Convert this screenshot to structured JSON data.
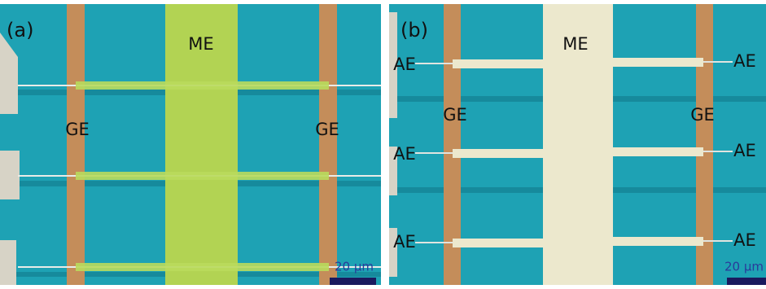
{
  "panels": [
    {
      "label": "(a)",
      "me": "ME",
      "ge_left": "GE",
      "ge_right": "GE",
      "scale_bar": "20 µm"
    },
    {
      "label": "(b)",
      "me": "ME",
      "ge_left": "GE",
      "ge_right": "GE",
      "ae_left": [
        "AE",
        "AE",
        "AE"
      ],
      "ae_right": [
        "AE",
        "AE",
        "AE"
      ],
      "scale_bar": "20 µm"
    }
  ]
}
